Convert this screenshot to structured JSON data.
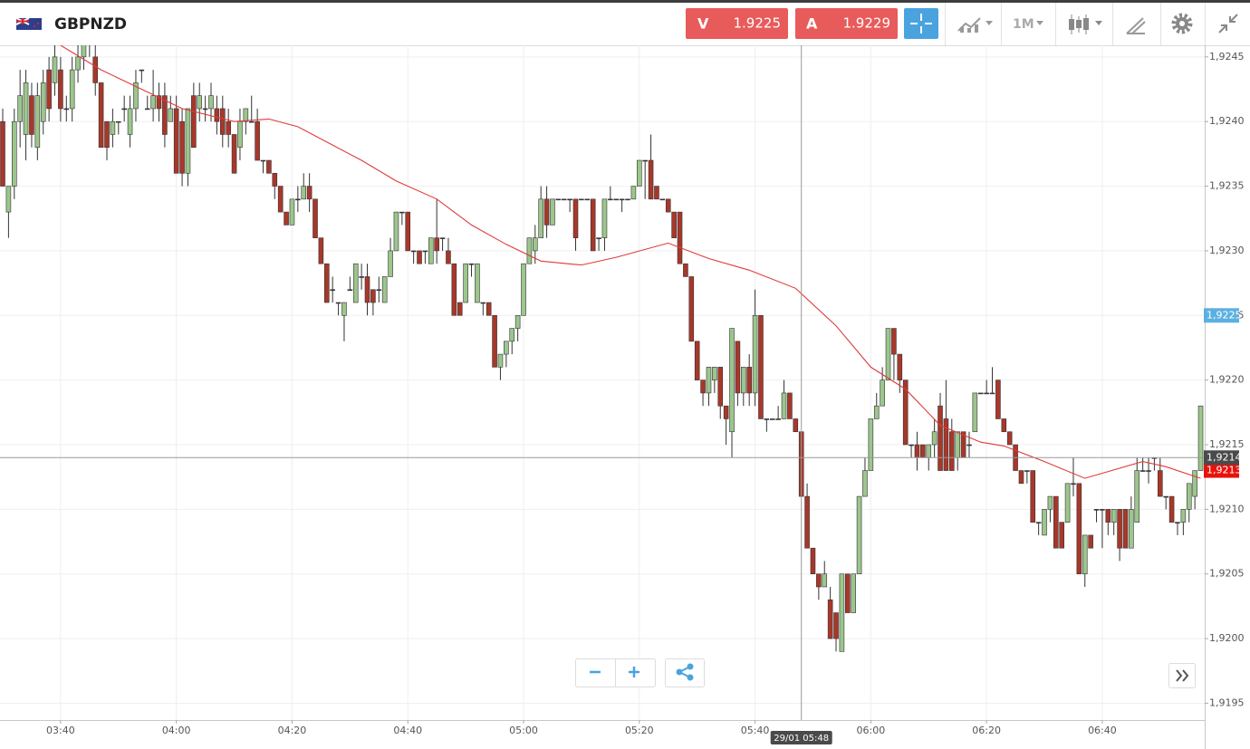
{
  "header": {
    "symbol": "GBPNZD",
    "sell_label": "V",
    "sell": "1.9225",
    "buy_label": "A",
    "buy": "1.9229",
    "timeframe": "1M"
  },
  "chart_data": {
    "type": "candlestick",
    "up_color": "#9cc68c",
    "down_color": "#a8372a",
    "wick_color": "#333333",
    "xlim": [
      -0.47,
      207.7
    ],
    "xticks": [
      {
        "value": 10,
        "label": "03:40"
      },
      {
        "value": 30,
        "label": "04:00"
      },
      {
        "value": 50,
        "label": "04:20"
      },
      {
        "value": 70,
        "label": "04:40"
      },
      {
        "value": 90,
        "label": "05:00"
      },
      {
        "value": 110,
        "label": "05:20"
      },
      {
        "value": 130,
        "label": "05:40"
      },
      {
        "value": 150,
        "label": "06:00"
      },
      {
        "value": 170,
        "label": "06:20"
      },
      {
        "value": 190,
        "label": "06:40"
      }
    ],
    "ylim": [
      1.91937,
      1.92459
    ],
    "yticks": [
      {
        "value": 1.9195,
        "label": "1,9195"
      },
      {
        "value": 1.92,
        "label": "1,9200"
      },
      {
        "value": 1.9205,
        "label": "1,9205"
      },
      {
        "value": 1.921,
        "label": "1,9210"
      },
      {
        "value": 1.9215,
        "label": "1,9215"
      },
      {
        "value": 1.922,
        "label": "1,9220"
      },
      {
        "value": 1.9225,
        "label": "1,9225"
      },
      {
        "value": 1.923,
        "label": "1,9230"
      },
      {
        "value": 1.9235,
        "label": "1,9235"
      },
      {
        "value": 1.924,
        "label": "1,9240"
      },
      {
        "value": 1.9245,
        "label": "1,9245"
      }
    ],
    "grid": true,
    "open": [
      1.924,
      1.9233,
      1.9235,
      1.924,
      1.9239,
      1.9242,
      1.9238,
      1.924,
      1.9244,
      1.9243,
      1.9244,
      1.9241,
      1.9241,
      1.9244,
      1.9245,
      1.9246,
      1.9245,
      1.9243,
      1.924,
      1.9239,
      1.924,
      1.9241,
      1.9239,
      1.9241,
      1.9244,
      1.9241,
      1.9241,
      1.9242,
      1.9242,
      1.924,
      1.9241,
      1.924,
      1.9236,
      1.9242,
      1.9241,
      1.9241,
      1.9241,
      1.9241,
      1.9241,
      1.924,
      1.9239,
      1.9238,
      1.924,
      1.924,
      1.924,
      1.9237,
      1.9237,
      1.9236,
      1.9235,
      1.9233,
      1.9232,
      1.9234,
      1.9234,
      1.9235,
      1.9234,
      1.9231,
      1.9229,
      1.9227,
      1.9226,
      1.9225,
      1.9227,
      1.9226,
      1.9228,
      1.9228,
      1.9227,
      1.9227,
      1.9226,
      1.9228,
      1.923,
      1.9233,
      1.9233,
      1.923,
      1.923,
      1.923,
      1.9229,
      1.9231,
      1.9231,
      1.923,
      1.9229,
      1.9226,
      1.9226,
      1.9229,
      1.9226,
      1.9226,
      1.9226,
      1.9225,
      1.9221,
      1.9222,
      1.9223,
      1.9224,
      1.9225,
      1.9229,
      1.923,
      1.9231,
      1.9234,
      1.9232,
      1.9234,
      1.9234,
      1.9234,
      1.9234,
      1.9234,
      1.9234,
      1.9234,
      1.9231,
      1.9231,
      1.9234,
      1.9234,
      1.9234,
      1.9234,
      1.9234,
      1.9235,
      1.9237,
      1.9237,
      1.9235,
      1.9234,
      1.9234,
      1.9233,
      1.9233,
      1.9229,
      1.9228,
      1.9223,
      1.922,
      1.9219,
      1.922,
      1.9221,
      1.9218,
      1.9216,
      1.9223,
      1.9219,
      1.9221,
      1.9219,
      1.9225,
      1.9217,
      1.9217,
      1.9217,
      1.9217,
      1.9219,
      1.9217,
      1.9216,
      1.9211,
      1.9207,
      1.9205,
      1.9204,
      1.9203,
      1.9202,
      1.9199,
      1.9205,
      1.9202,
      1.9205,
      1.9211,
      1.9213,
      1.9217,
      1.9218,
      1.922,
      1.9224,
      1.9222,
      1.922,
      1.9215,
      1.9215,
      1.9215,
      1.9214,
      1.9215,
      1.9218,
      1.9217,
      1.9216,
      1.9214,
      1.9216,
      1.9215,
      1.9216,
      1.9219,
      1.9219,
      1.9219,
      1.922,
      1.9217,
      1.9216,
      1.9215,
      1.9213,
      1.9213,
      1.9213,
      1.9209,
      1.9208,
      1.921,
      1.9211,
      1.9209,
      1.9209,
      1.9212,
      1.9212,
      1.9205,
      1.9208,
      1.921,
      1.921,
      1.921,
      1.9209,
      1.921,
      1.921,
      1.9207,
      1.9209,
      1.9213,
      1.9213,
      1.9214,
      1.9213,
      1.9211,
      1.9211,
      1.9209,
      1.9209,
      1.921,
      1.9211,
      1.9213
    ],
    "high": [
      1.9241,
      1.9235,
      1.9241,
      1.9244,
      1.9244,
      1.9243,
      1.9243,
      1.9244,
      1.9245,
      1.9246,
      1.9245,
      1.9242,
      1.9245,
      1.9246,
      1.9247,
      1.9247,
      1.9246,
      1.9243,
      1.924,
      1.9241,
      1.924,
      1.9242,
      1.9242,
      1.9244,
      1.9244,
      1.9242,
      1.9244,
      1.9243,
      1.9243,
      1.9242,
      1.9242,
      1.9241,
      1.9241,
      1.9243,
      1.9243,
      1.9242,
      1.9243,
      1.9242,
      1.9242,
      1.9241,
      1.9239,
      1.9241,
      1.9241,
      1.9242,
      1.9241,
      1.9237,
      1.9237,
      1.9236,
      1.9235,
      1.9233,
      1.9234,
      1.9235,
      1.9236,
      1.9236,
      1.9234,
      1.9231,
      1.9229,
      1.9228,
      1.9226,
      1.9226,
      1.9228,
      1.9229,
      1.9229,
      1.9229,
      1.9227,
      1.9228,
      1.9228,
      1.9231,
      1.9233,
      1.9233,
      1.9233,
      1.923,
      1.923,
      1.923,
      1.9231,
      1.9234,
      1.9231,
      1.9231,
      1.9229,
      1.9226,
      1.9229,
      1.9229,
      1.9229,
      1.9226,
      1.9226,
      1.9225,
      1.9222,
      1.9223,
      1.9224,
      1.9225,
      1.9229,
      1.9231,
      1.9232,
      1.9235,
      1.9235,
      1.9234,
      1.9234,
      1.9234,
      1.9234,
      1.9234,
      1.9234,
      1.9234,
      1.9234,
      1.9231,
      1.9234,
      1.9235,
      1.9234,
      1.9234,
      1.9234,
      1.9235,
      1.9237,
      1.9237,
      1.9239,
      1.9235,
      1.9234,
      1.9234,
      1.9233,
      1.9233,
      1.9229,
      1.9228,
      1.9223,
      1.922,
      1.9221,
      1.9221,
      1.9221,
      1.9218,
      1.9224,
      1.9223,
      1.9221,
      1.9222,
      1.9227,
      1.9225,
      1.9217,
      1.9217,
      1.9218,
      1.922,
      1.9219,
      1.9217,
      1.9216,
      1.9212,
      1.9207,
      1.9205,
      1.9206,
      1.9204,
      1.9202,
      1.9205,
      1.9205,
      1.9205,
      1.9211,
      1.9214,
      1.9217,
      1.9219,
      1.9221,
      1.9224,
      1.9224,
      1.9222,
      1.922,
      1.9215,
      1.9216,
      1.9215,
      1.9215,
      1.9217,
      1.9219,
      1.922,
      1.9217,
      1.9216,
      1.9216,
      1.9216,
      1.9219,
      1.9219,
      1.922,
      1.9221,
      1.922,
      1.9217,
      1.9216,
      1.9215,
      1.9213,
      1.9213,
      1.9213,
      1.9209,
      1.921,
      1.9211,
      1.9211,
      1.9209,
      1.9212,
      1.9214,
      1.9212,
      1.9208,
      1.9208,
      1.921,
      1.921,
      1.921,
      1.921,
      1.921,
      1.921,
      1.9211,
      1.9214,
      1.9214,
      1.9214,
      1.9214,
      1.9214,
      1.9211,
      1.9211,
      1.9209,
      1.921,
      1.9212,
      1.9213,
      1.9218
    ],
    "low": [
      1.9235,
      1.9231,
      1.9234,
      1.9238,
      1.9237,
      1.9238,
      1.9237,
      1.9239,
      1.924,
      1.9242,
      1.924,
      1.924,
      1.924,
      1.9243,
      1.9244,
      1.9245,
      1.9242,
      1.9238,
      1.9237,
      1.9238,
      1.9239,
      1.924,
      1.9238,
      1.924,
      1.9243,
      1.9241,
      1.924,
      1.924,
      1.9238,
      1.924,
      1.9236,
      1.9235,
      1.9235,
      1.9238,
      1.924,
      1.924,
      1.924,
      1.9239,
      1.9238,
      1.9238,
      1.9236,
      1.9237,
      1.9239,
      1.924,
      1.9237,
      1.9236,
      1.9236,
      1.9234,
      1.9233,
      1.9232,
      1.9232,
      1.9233,
      1.9234,
      1.9233,
      1.9231,
      1.9229,
      1.9226,
      1.9226,
      1.9225,
      1.9223,
      1.9227,
      1.9226,
      1.9227,
      1.9225,
      1.9225,
      1.9226,
      1.9226,
      1.9228,
      1.923,
      1.9232,
      1.923,
      1.9229,
      1.9229,
      1.9229,
      1.9229,
      1.9229,
      1.923,
      1.9229,
      1.9225,
      1.9225,
      1.9226,
      1.9228,
      1.9226,
      1.9225,
      1.9225,
      1.9221,
      1.922,
      1.9221,
      1.9222,
      1.9223,
      1.9225,
      1.9229,
      1.9229,
      1.9231,
      1.9231,
      1.9232,
      1.9234,
      1.9234,
      1.9233,
      1.923,
      1.9234,
      1.9234,
      1.923,
      1.923,
      1.923,
      1.9234,
      1.9234,
      1.9233,
      1.9234,
      1.9234,
      1.9235,
      1.9234,
      1.9234,
      1.9234,
      1.9234,
      1.9233,
      1.9231,
      1.9229,
      1.9228,
      1.9223,
      1.922,
      1.9218,
      1.9218,
      1.9219,
      1.9217,
      1.9215,
      1.9214,
      1.9218,
      1.9218,
      1.9218,
      1.9218,
      1.9217,
      1.9216,
      1.9217,
      1.9217,
      1.9217,
      1.9217,
      1.9216,
      1.9211,
      1.9207,
      1.9205,
      1.9203,
      1.9204,
      1.92,
      1.9199,
      1.9199,
      1.9202,
      1.9202,
      1.9205,
      1.9211,
      1.9213,
      1.9217,
      1.9218,
      1.922,
      1.922,
      1.9219,
      1.9215,
      1.9214,
      1.9213,
      1.9214,
      1.9213,
      1.9214,
      1.9213,
      1.9213,
      1.9213,
      1.9213,
      1.9214,
      1.9214,
      1.9216,
      1.9219,
      1.9219,
      1.9219,
      1.9217,
      1.9216,
      1.9215,
      1.9213,
      1.9212,
      1.9212,
      1.9209,
      1.9208,
      1.9208,
      1.9209,
      1.9207,
      1.9207,
      1.9209,
      1.9211,
      1.9205,
      1.9204,
      1.9207,
      1.9209,
      1.9207,
      1.9208,
      1.9208,
      1.9206,
      1.9207,
      1.9207,
      1.9209,
      1.9213,
      1.9212,
      1.9213,
      1.9211,
      1.921,
      1.9209,
      1.9208,
      1.9208,
      1.9209,
      1.921,
      1.9213
    ],
    "close": [
      1.9235,
      1.9235,
      1.924,
      1.9242,
      1.9243,
      1.9239,
      1.9242,
      1.9243,
      1.9241,
      1.9245,
      1.9241,
      1.9241,
      1.9244,
      1.9245,
      1.9246,
      1.9246,
      1.9243,
      1.9238,
      1.9238,
      1.924,
      1.924,
      1.9241,
      1.9241,
      1.9243,
      1.9244,
      1.9241,
      1.9242,
      1.9241,
      1.9239,
      1.9241,
      1.9236,
      1.9236,
      1.9241,
      1.9238,
      1.9242,
      1.9241,
      1.9242,
      1.924,
      1.9239,
      1.9239,
      1.9236,
      1.924,
      1.9241,
      1.924,
      1.9237,
      1.9237,
      1.9236,
      1.9235,
      1.9233,
      1.9232,
      1.9234,
      1.9234,
      1.9235,
      1.9234,
      1.9231,
      1.9229,
      1.9226,
      1.9227,
      1.9226,
      1.9226,
      1.9227,
      1.9229,
      1.9228,
      1.9226,
      1.9226,
      1.9227,
      1.9228,
      1.923,
      1.9233,
      1.9233,
      1.923,
      1.923,
      1.9229,
      1.923,
      1.9231,
      1.923,
      1.9231,
      1.9229,
      1.9225,
      1.9225,
      1.9229,
      1.9229,
      1.9229,
      1.9226,
      1.9225,
      1.9221,
      1.9222,
      1.9223,
      1.9224,
      1.9225,
      1.9229,
      1.9231,
      1.9231,
      1.9234,
      1.9232,
      1.9234,
      1.9234,
      1.9234,
      1.9234,
      1.9231,
      1.9234,
      1.9234,
      1.923,
      1.9231,
      1.9234,
      1.9234,
      1.9234,
      1.9234,
      1.9234,
      1.9235,
      1.9237,
      1.9237,
      1.9234,
      1.9234,
      1.9234,
      1.9233,
      1.9231,
      1.9229,
      1.9228,
      1.9223,
      1.922,
      1.9219,
      1.9221,
      1.9221,
      1.9218,
      1.9217,
      1.9224,
      1.9219,
      1.9221,
      1.9219,
      1.9225,
      1.9217,
      1.9217,
      1.9217,
      1.9217,
      1.9219,
      1.9217,
      1.9216,
      1.9211,
      1.9207,
      1.9205,
      1.9204,
      1.9205,
      1.92,
      1.92,
      1.9205,
      1.9202,
      1.9205,
      1.9211,
      1.9213,
      1.9217,
      1.9218,
      1.922,
      1.9224,
      1.9222,
      1.922,
      1.9215,
      1.9215,
      1.9214,
      1.9214,
      1.9215,
      1.9216,
      1.9213,
      1.9213,
      1.9213,
      1.9216,
      1.9214,
      1.9215,
      1.9219,
      1.9219,
      1.9219,
      1.9219,
      1.9217,
      1.9216,
      1.9215,
      1.9213,
      1.9212,
      1.9213,
      1.9209,
      1.9209,
      1.921,
      1.9211,
      1.9207,
      1.9207,
      1.9212,
      1.9212,
      1.9205,
      1.9208,
      1.9207,
      1.921,
      1.921,
      1.9209,
      1.921,
      1.9207,
      1.9207,
      1.921,
      1.9213,
      1.9213,
      1.9213,
      1.9214,
      1.9211,
      1.9211,
      1.9209,
      1.9209,
      1.921,
      1.9212,
      1.9213,
      1.9218
    ],
    "ma": {
      "color": "#e03a3a",
      "x": [
        10,
        17,
        31,
        40,
        46,
        51,
        62,
        68,
        75,
        81,
        87,
        93,
        100,
        106,
        115,
        122,
        129,
        137,
        144,
        150,
        156,
        162,
        169,
        173,
        180,
        187,
        197,
        201,
        207
      ],
      "values": [
        1.92459,
        1.9244,
        1.9241,
        1.924,
        1.92402,
        1.92396,
        1.9237,
        1.92354,
        1.9234,
        1.9232,
        1.92305,
        1.92292,
        1.92289,
        1.92295,
        1.92306,
        1.92294,
        1.92285,
        1.92271,
        1.92242,
        1.9221,
        1.92193,
        1.92165,
        1.92152,
        1.92149,
        1.92137,
        1.92124,
        1.92137,
        1.92133,
        1.92124
      ]
    },
    "crosshair": {
      "x": 138,
      "time_label": "29/01 05:48",
      "price": {
        "value": 1.9214,
        "label": "1,9214"
      },
      "color": "#4a4a4a"
    },
    "markers": [
      {
        "value": 1.9225,
        "label": "1,9225",
        "color": "#5bb0e0"
      },
      {
        "value": 1.9213,
        "label": "1,9213",
        "color": "#e8120c"
      }
    ]
  }
}
